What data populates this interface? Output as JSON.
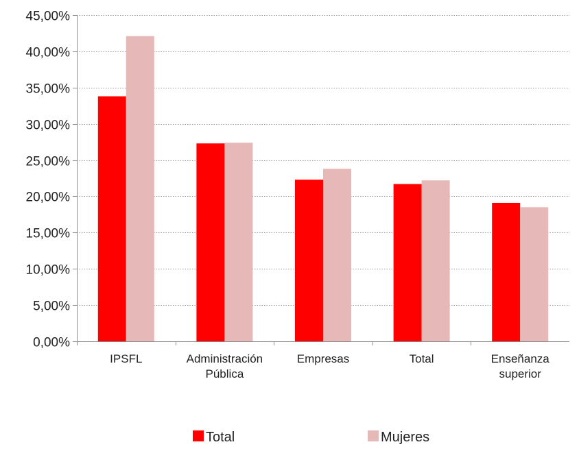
{
  "chart_data": {
    "type": "bar",
    "title": "",
    "xlabel": "",
    "ylabel": "",
    "categories": [
      [
        "IPSFL"
      ],
      [
        "Administración",
        "Pública"
      ],
      [
        "Empresas"
      ],
      [
        "Total"
      ],
      [
        "Enseñanza",
        "superior"
      ]
    ],
    "series": [
      {
        "name": "Total",
        "color": "#ff0000",
        "values": [
          33.8,
          27.3,
          22.3,
          21.7,
          19.1
        ]
      },
      {
        "name": "Mujeres",
        "color": "#e6b8b7",
        "values": [
          42.1,
          27.4,
          23.8,
          22.2,
          18.5
        ]
      }
    ],
    "ylim": [
      0,
      45
    ],
    "yticks": [
      "0,00%",
      "5,00%",
      "10,00%",
      "15,00%",
      "20,00%",
      "25,00%",
      "30,00%",
      "35,00%",
      "40,00%",
      "45,00%"
    ],
    "grid": true,
    "legend_position": "bottom"
  }
}
